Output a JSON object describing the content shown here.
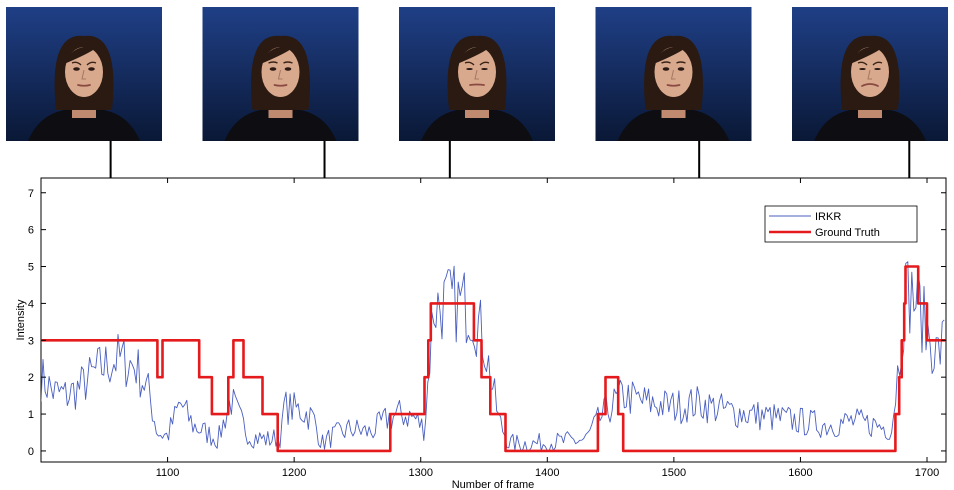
{
  "chart_data": {
    "type": "line",
    "xlabel": "Number of frame",
    "ylabel": "Intensity",
    "xlim": [
      1000,
      1715
    ],
    "ylim": [
      -0.3,
      7.4
    ],
    "xticks": [
      1100,
      1200,
      1300,
      1400,
      1500,
      1600,
      1700
    ],
    "yticks": [
      0,
      1,
      2,
      3,
      4,
      5,
      6,
      7
    ],
    "grid": false,
    "legend_position": "top-right",
    "series": [
      {
        "name": "IRKR",
        "color": "#4a5fc1",
        "style": "noisy",
        "keypoints": [
          [
            1000,
            2.0
          ],
          [
            1010,
            1.6
          ],
          [
            1020,
            1.5
          ],
          [
            1030,
            1.7
          ],
          [
            1045,
            2.2
          ],
          [
            1060,
            2.5
          ],
          [
            1075,
            2.3
          ],
          [
            1085,
            1.6
          ],
          [
            1092,
            0.5
          ],
          [
            1100,
            0.4
          ],
          [
            1110,
            1.3
          ],
          [
            1120,
            0.7
          ],
          [
            1130,
            0.5
          ],
          [
            1140,
            0.3
          ],
          [
            1150,
            1.4
          ],
          [
            1158,
            0.8
          ],
          [
            1165,
            0.4
          ],
          [
            1180,
            0.3
          ],
          [
            1190,
            0.4
          ],
          [
            1192,
            1.2
          ],
          [
            1205,
            1.1
          ],
          [
            1215,
            0.9
          ],
          [
            1222,
            0.2
          ],
          [
            1230,
            0.4
          ],
          [
            1245,
            0.6
          ],
          [
            1260,
            0.5
          ],
          [
            1275,
            0.9
          ],
          [
            1285,
            1.0
          ],
          [
            1295,
            0.9
          ],
          [
            1303,
            0.6
          ],
          [
            1306,
            2.0
          ],
          [
            1310,
            3.9
          ],
          [
            1320,
            4.0
          ],
          [
            1330,
            4.0
          ],
          [
            1340,
            3.9
          ],
          [
            1350,
            3.0
          ],
          [
            1358,
            1.5
          ],
          [
            1362,
            0.8
          ],
          [
            1370,
            0.2
          ],
          [
            1390,
            0.2
          ],
          [
            1410,
            0.25
          ],
          [
            1430,
            0.3
          ],
          [
            1440,
            0.8
          ],
          [
            1447,
            1.1
          ],
          [
            1453,
            1.3
          ],
          [
            1460,
            1.5
          ],
          [
            1480,
            1.3
          ],
          [
            1500,
            1.2
          ],
          [
            1520,
            1.3
          ],
          [
            1540,
            1.1
          ],
          [
            1560,
            1.0
          ],
          [
            1580,
            0.9
          ],
          [
            1600,
            0.8
          ],
          [
            1620,
            0.7
          ],
          [
            1640,
            0.8
          ],
          [
            1660,
            0.7
          ],
          [
            1672,
            0.6
          ],
          [
            1678,
            2.5
          ],
          [
            1683,
            4.3
          ],
          [
            1690,
            4.2
          ],
          [
            1695,
            3.8
          ],
          [
            1700,
            3.2
          ],
          [
            1708,
            2.6
          ],
          [
            1715,
            3.1
          ]
        ]
      },
      {
        "name": "Ground Truth",
        "color": "#e41a1c",
        "style": "step",
        "points": [
          [
            1000,
            3
          ],
          [
            1092,
            3
          ],
          [
            1092,
            2
          ],
          [
            1096,
            2
          ],
          [
            1096,
            3
          ],
          [
            1125,
            3
          ],
          [
            1125,
            2
          ],
          [
            1135,
            2
          ],
          [
            1135,
            1
          ],
          [
            1148,
            1
          ],
          [
            1148,
            2
          ],
          [
            1152,
            2
          ],
          [
            1152,
            3
          ],
          [
            1160,
            3
          ],
          [
            1160,
            2
          ],
          [
            1175,
            2
          ],
          [
            1175,
            1
          ],
          [
            1187,
            1
          ],
          [
            1187,
            0
          ],
          [
            1276,
            0
          ],
          [
            1276,
            1
          ],
          [
            1303,
            1
          ],
          [
            1303,
            2
          ],
          [
            1306,
            2
          ],
          [
            1306,
            3
          ],
          [
            1308,
            3
          ],
          [
            1308,
            4
          ],
          [
            1342,
            4
          ],
          [
            1342,
            3
          ],
          [
            1348,
            3
          ],
          [
            1348,
            2
          ],
          [
            1355,
            2
          ],
          [
            1355,
            1
          ],
          [
            1367,
            1
          ],
          [
            1367,
            0
          ],
          [
            1440,
            0
          ],
          [
            1440,
            1
          ],
          [
            1446,
            1
          ],
          [
            1446,
            2
          ],
          [
            1456,
            2
          ],
          [
            1456,
            1
          ],
          [
            1460,
            1
          ],
          [
            1460,
            0
          ],
          [
            1675,
            0
          ],
          [
            1675,
            1
          ],
          [
            1678,
            1
          ],
          [
            1678,
            2
          ],
          [
            1680,
            2
          ],
          [
            1680,
            3
          ],
          [
            1682,
            3
          ],
          [
            1682,
            4
          ],
          [
            1683,
            4
          ],
          [
            1683,
            5
          ],
          [
            1693,
            5
          ],
          [
            1693,
            4
          ],
          [
            1700,
            4
          ],
          [
            1700,
            3
          ],
          [
            1715,
            3
          ]
        ]
      }
    ],
    "annotations": [
      {
        "frame": 1055,
        "thumbnail": "face-thumbnail-1",
        "top_y": 3.0
      },
      {
        "frame": 1224,
        "thumbnail": "face-thumbnail-2",
        "top_y": 0.0
      },
      {
        "frame": 1323,
        "thumbnail": "face-thumbnail-3",
        "top_y": 4.0
      },
      {
        "frame": 1520,
        "thumbnail": "face-thumbnail-4",
        "top_y": 0.0
      },
      {
        "frame": 1686,
        "thumbnail": "face-thumbnail-5",
        "top_y": 4.8
      }
    ]
  },
  "thumbnails": [
    {
      "name": "face-thumbnail-1",
      "expression": "neutral-frown"
    },
    {
      "name": "face-thumbnail-2",
      "expression": "neutral"
    },
    {
      "name": "face-thumbnail-3",
      "expression": "grimace"
    },
    {
      "name": "face-thumbnail-4",
      "expression": "neutral"
    },
    {
      "name": "face-thumbnail-5",
      "expression": "strong-grimace"
    }
  ],
  "colors": {
    "photo_background_top": "#1f3f86",
    "photo_background_bottom": "#0a1836",
    "hair": "#2a1a12",
    "skin": "#d9a98e"
  }
}
